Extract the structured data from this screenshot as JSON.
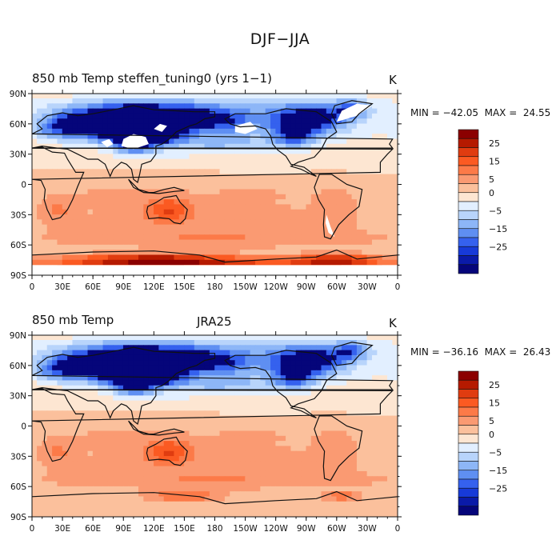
{
  "figure_title": "DJF−JJA",
  "panels": [
    {
      "left_title": "850 mb Temp   steffen_tuning0 (yrs 1−1)",
      "center_title": "",
      "units": "K",
      "min_max": "MIN = −42.05  MAX =  24.55",
      "has_missing_data": true
    },
    {
      "left_title": "850 mb Temp",
      "center_title": "JRA25",
      "units": "K",
      "min_max": "MIN = −36.16  MAX =  26.43",
      "has_missing_data": false
    }
  ],
  "axes": {
    "lon_labels": [
      "0",
      "30E",
      "60E",
      "90E",
      "120E",
      "150E",
      "180",
      "150W",
      "120W",
      "90W",
      "60W",
      "30W",
      "0"
    ],
    "lat_labels": [
      "90N",
      "60N",
      "30N",
      "0",
      "30S",
      "60S",
      "90S"
    ]
  },
  "colorbar": {
    "levels": [
      -30,
      -25,
      -20,
      -15,
      -10,
      -5,
      0,
      5,
      10,
      15,
      20,
      25,
      30
    ],
    "tick_labels": [
      "25",
      "15",
      "5",
      "0",
      "−5",
      "−15",
      "−25"
    ],
    "colors": [
      "#8b0000",
      "#b51a00",
      "#e03c10",
      "#fb5a22",
      "#fc7a48",
      "#fa9a72",
      "#fbc09c",
      "#fde6d2",
      "#e2efff",
      "#b8d4fb",
      "#8db6f7",
      "#5f8ff2",
      "#3561ee",
      "#173ad8",
      "#0a1aa8",
      "#05057a"
    ]
  }
}
